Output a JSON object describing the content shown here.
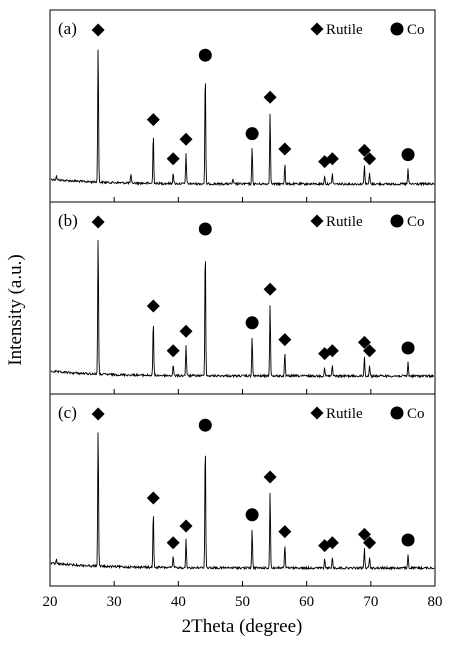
{
  "chart_data": {
    "type": "line",
    "xlabel": "2Theta (degree)",
    "ylabel": "Intensity (a.u.)",
    "xlim": [
      20,
      80
    ],
    "xticks": [
      20,
      30,
      40,
      50,
      60,
      70,
      80
    ],
    "grid": false,
    "legend_position": "top-right",
    "legend": [
      {
        "marker": "diamond",
        "label": "Rutile"
      },
      {
        "marker": "circle",
        "label": "Co"
      }
    ],
    "panels": [
      {
        "label": "(a)",
        "rutile_peaks": [
          {
            "x": 27.5,
            "y": 100
          },
          {
            "x": 36.1,
            "y": 36
          },
          {
            "x": 39.2,
            "y": 8
          },
          {
            "x": 41.2,
            "y": 22
          },
          {
            "x": 54.3,
            "y": 52
          },
          {
            "x": 56.6,
            "y": 15
          },
          {
            "x": 62.8,
            "y": 6
          },
          {
            "x": 64.0,
            "y": 8
          },
          {
            "x": 69.0,
            "y": 14
          },
          {
            "x": 69.8,
            "y": 8
          }
        ],
        "co_peaks": [
          {
            "x": 44.2,
            "y": 82
          },
          {
            "x": 51.5,
            "y": 26
          },
          {
            "x": 75.8,
            "y": 11
          }
        ],
        "minor_peaks": [
          {
            "x": 21.0,
            "y": 3
          },
          {
            "x": 32.6,
            "y": 6
          },
          {
            "x": 48.5,
            "y": 3
          }
        ]
      },
      {
        "label": "(b)",
        "rutile_peaks": [
          {
            "x": 27.5,
            "y": 100
          },
          {
            "x": 36.1,
            "y": 40
          },
          {
            "x": 39.2,
            "y": 8
          },
          {
            "x": 41.2,
            "y": 22
          },
          {
            "x": 54.3,
            "y": 52
          },
          {
            "x": 56.6,
            "y": 16
          },
          {
            "x": 62.8,
            "y": 6
          },
          {
            "x": 64.0,
            "y": 8
          },
          {
            "x": 69.0,
            "y": 14
          },
          {
            "x": 69.8,
            "y": 8
          }
        ],
        "co_peaks": [
          {
            "x": 44.2,
            "y": 95
          },
          {
            "x": 51.5,
            "y": 28
          },
          {
            "x": 75.8,
            "y": 10
          }
        ],
        "minor_peaks": []
      },
      {
        "label": "(c)",
        "rutile_peaks": [
          {
            "x": 27.5,
            "y": 100
          },
          {
            "x": 36.1,
            "y": 40
          },
          {
            "x": 39.2,
            "y": 8
          },
          {
            "x": 41.2,
            "y": 20
          },
          {
            "x": 54.3,
            "y": 55
          },
          {
            "x": 56.6,
            "y": 16
          },
          {
            "x": 62.8,
            "y": 6
          },
          {
            "x": 64.0,
            "y": 8
          },
          {
            "x": 69.0,
            "y": 14
          },
          {
            "x": 69.8,
            "y": 8
          }
        ],
        "co_peaks": [
          {
            "x": 44.2,
            "y": 92
          },
          {
            "x": 51.5,
            "y": 28
          },
          {
            "x": 75.8,
            "y": 10
          }
        ],
        "minor_peaks": [
          {
            "x": 21.0,
            "y": 3
          }
        ]
      }
    ]
  }
}
